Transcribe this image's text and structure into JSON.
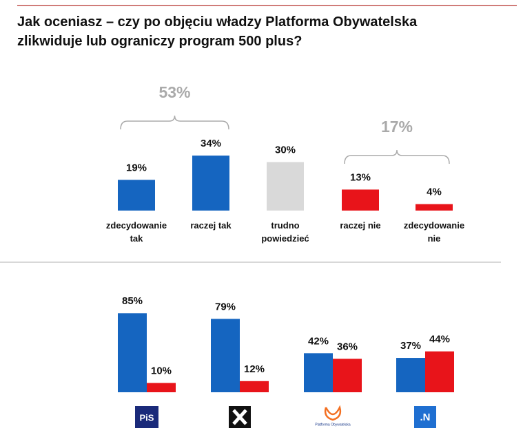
{
  "chart_data": [
    {
      "type": "bar",
      "title": "Jak oceniasz – czy po objęciu władzy Platforma Obywatelska zlikwiduje lub ograniczy program 500 plus?",
      "categories": [
        "zdecydowanie tak",
        "raczej tak",
        "trudno powiedzieć",
        "raczej nie",
        "zdecydowanie nie"
      ],
      "values": [
        19,
        34,
        30,
        13,
        4
      ],
      "value_labels": [
        "19%",
        "34%",
        "30%",
        "13%",
        "4%"
      ],
      "colors": [
        "#1565c0",
        "#1565c0",
        "#d9d9d9",
        "#e8141a",
        "#e8141a"
      ],
      "brackets": [
        {
          "value": 53,
          "label": "53%"
        },
        {
          "value": 17,
          "label": "17%"
        }
      ]
    },
    {
      "type": "grouped_bar",
      "categories": [
        "PiS",
        null,
        "Platforma Obywatelska",
        ".N"
      ],
      "series": [
        {
          "color": "#1565c0",
          "values": [
            85,
            79,
            42,
            37
          ],
          "value_labels": [
            "85%",
            "79%",
            "42%",
            "37%"
          ]
        },
        {
          "color": "#e8141a",
          "values": [
            10,
            12,
            36,
            44
          ],
          "value_labels": [
            "10%",
            "12%",
            "36%",
            "44%"
          ]
        }
      ]
    }
  ]
}
